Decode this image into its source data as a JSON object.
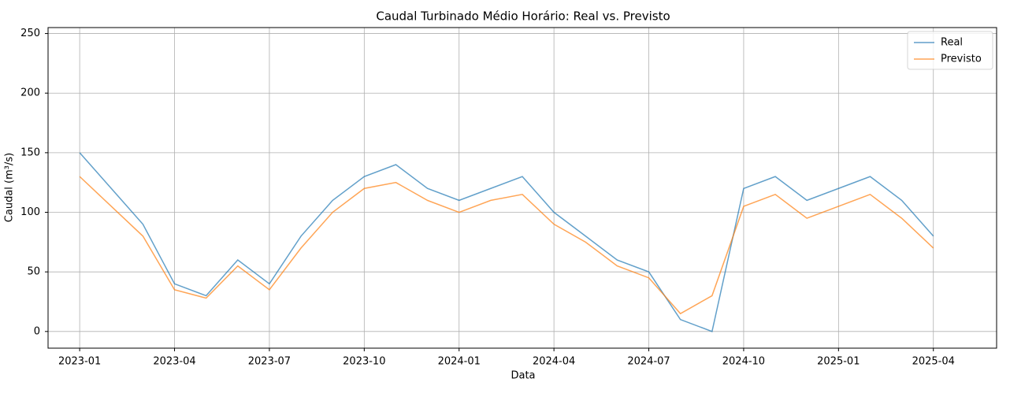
{
  "chart_data": {
    "type": "line",
    "title": "Caudal Turbinado Médio Horário: Real vs. Previsto",
    "xlabel": "Data",
    "ylabel": "Caudal (m³/s)",
    "x": [
      "2023-01",
      "2023-02",
      "2023-03",
      "2023-04",
      "2023-05",
      "2023-06",
      "2023-07",
      "2023-08",
      "2023-09",
      "2023-10",
      "2023-11",
      "2023-12",
      "2024-01",
      "2024-02",
      "2024-03",
      "2024-04",
      "2024-05",
      "2024-06",
      "2024-07",
      "2024-08",
      "2024-09",
      "2024-10",
      "2024-11",
      "2024-12",
      "2025-01",
      "2025-02",
      "2025-03",
      "2025-04"
    ],
    "series": [
      {
        "name": "Real",
        "color": "#1f77b4",
        "values": [
          150,
          120,
          90,
          40,
          30,
          60,
          40,
          80,
          110,
          130,
          140,
          120,
          110,
          120,
          130,
          100,
          80,
          60,
          50,
          10,
          0,
          120,
          130,
          110,
          120,
          130,
          110,
          80
        ]
      },
      {
        "name": "Previsto",
        "color": "#ff7f0e",
        "values": [
          130,
          105,
          80,
          35,
          28,
          55,
          35,
          70,
          100,
          120,
          125,
          110,
          100,
          110,
          115,
          90,
          75,
          55,
          45,
          15,
          30,
          105,
          115,
          95,
          105,
          115,
          95,
          70
        ]
      }
    ],
    "xlim": [
      "2022-12",
      "2025-06"
    ],
    "xticks": [
      "2023-01",
      "2023-04",
      "2023-07",
      "2023-10",
      "2024-01",
      "2024-04",
      "2024-07",
      "2024-10",
      "2025-01",
      "2025-04"
    ],
    "ylim": [
      -14,
      255
    ],
    "yticks": [
      0,
      50,
      100,
      150,
      200,
      250
    ],
    "grid": true,
    "legend": "upper right"
  }
}
